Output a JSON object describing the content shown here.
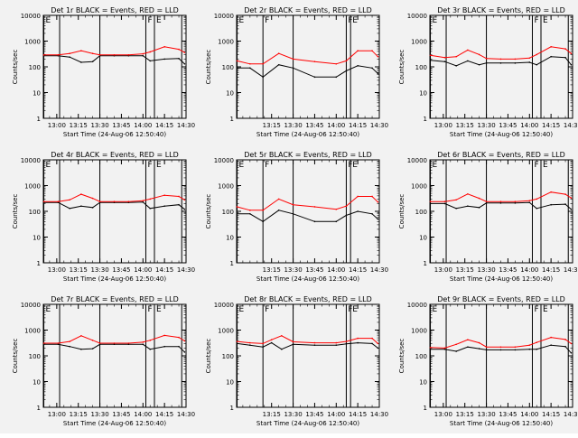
{
  "colors": {
    "background": "#f2f2f2",
    "events": "#000000",
    "lld": "#ff0000",
    "axis": "#000000"
  },
  "shared": {
    "ylabel": "Counts/sec",
    "xlabel": "Start Time (24-Aug-06 12:50:40)",
    "yscale": "log",
    "ylim": [
      1,
      10000
    ],
    "yticks": [
      "1",
      "10",
      "100",
      "1000",
      "10000"
    ],
    "xrange_hours": [
      12.8444,
      14.5
    ]
  },
  "chart_data": [
    {
      "type": "line",
      "title": "Det 1r BLACK = Events, RED = LLD",
      "ylabel": "Counts/sec",
      "xlabel": "Start Time (24-Aug-06 12:50:40)",
      "xticks": [
        "13:00",
        "13:15",
        "13:30",
        "13:45",
        "14:00",
        "14:15",
        "14:30"
      ],
      "markers": [
        {
          "x": "12:51",
          "label": "E"
        },
        {
          "x": "13:02",
          "label": ""
        },
        {
          "x": "13:30",
          "label": ""
        },
        {
          "x": "14:02",
          "label": "F"
        },
        {
          "x": "14:08",
          "label": "E"
        },
        {
          "x": "14:27",
          "label": ""
        }
      ],
      "series": [
        {
          "name": "Events",
          "color": "#000000",
          "x": [
            "12:51",
            "13:01",
            "13:09",
            "13:17",
            "13:25",
            "13:30",
            "13:40",
            "13:50",
            "14:00",
            "14:05",
            "14:15",
            "14:25",
            "14:29"
          ],
          "values": [
            270,
            270,
            240,
            150,
            160,
            270,
            270,
            270,
            270,
            170,
            200,
            210,
            130
          ]
        },
        {
          "name": "LLD",
          "color": "#ff0000",
          "x": [
            "12:51",
            "13:01",
            "13:09",
            "13:17",
            "13:25",
            "13:30",
            "13:40",
            "13:50",
            "14:00",
            "14:05",
            "14:15",
            "14:25",
            "14:29"
          ],
          "values": [
            290,
            290,
            330,
            420,
            330,
            290,
            290,
            290,
            320,
            380,
            600,
            480,
            360
          ]
        }
      ]
    },
    {
      "type": "line",
      "title": "Det 2r BLACK = Events, RED = LLD",
      "ylabel": "Counts/sec",
      "xlabel": "Start Time (24-Aug-06 12:50:40)",
      "xticks": [
        "13:15",
        "13:30",
        "13:45",
        "14:00",
        "14:15",
        "14:30"
      ],
      "markers": [
        {
          "x": "12:51",
          "label": "E"
        },
        {
          "x": "13:09",
          "label": "F"
        },
        {
          "x": "13:30",
          "label": ""
        },
        {
          "x": "14:07",
          "label": "F"
        },
        {
          "x": "14:10",
          "label": "E"
        }
      ],
      "series": [
        {
          "name": "Events",
          "color": "#000000",
          "x": [
            "12:51",
            "13:00",
            "13:09",
            "13:20",
            "13:30",
            "13:45",
            "14:00",
            "14:07",
            "14:15",
            "14:25",
            "14:29"
          ],
          "values": [
            90,
            90,
            40,
            120,
            90,
            40,
            40,
            70,
            110,
            90,
            55
          ]
        },
        {
          "name": "LLD",
          "color": "#ff0000",
          "x": [
            "12:51",
            "13:00",
            "13:09",
            "13:20",
            "13:30",
            "13:45",
            "14:00",
            "14:07",
            "14:15",
            "14:25",
            "14:29"
          ],
          "values": [
            170,
            130,
            130,
            330,
            200,
            160,
            130,
            170,
            420,
            420,
            250
          ]
        }
      ]
    },
    {
      "type": "line",
      "title": "Det 3r BLACK = Events, RED = LLD",
      "ylabel": "Counts/sec",
      "xlabel": "Start Time (24-Aug-06 12:50:40)",
      "xticks": [
        "13:00",
        "13:15",
        "13:30",
        "13:45",
        "14:00",
        "14:15",
        "14:30"
      ],
      "markers": [
        {
          "x": "12:51",
          "label": "E"
        },
        {
          "x": "13:02",
          "label": ""
        },
        {
          "x": "13:30",
          "label": ""
        },
        {
          "x": "14:02",
          "label": "F"
        },
        {
          "x": "14:08",
          "label": "E"
        },
        {
          "x": "14:27",
          "label": ""
        }
      ],
      "series": [
        {
          "name": "Events",
          "color": "#000000",
          "x": [
            "12:51",
            "13:01",
            "13:09",
            "13:17",
            "13:25",
            "13:30",
            "13:40",
            "13:50",
            "14:00",
            "14:05",
            "14:15",
            "14:25",
            "14:29"
          ],
          "values": [
            180,
            160,
            110,
            170,
            120,
            140,
            140,
            140,
            150,
            120,
            250,
            230,
            120
          ]
        },
        {
          "name": "LLD",
          "color": "#ff0000",
          "x": [
            "12:51",
            "13:01",
            "13:09",
            "13:17",
            "13:25",
            "13:30",
            "13:40",
            "13:50",
            "14:00",
            "14:05",
            "14:15",
            "14:25",
            "14:29"
          ],
          "values": [
            280,
            230,
            250,
            450,
            300,
            210,
            200,
            200,
            220,
            300,
            600,
            500,
            330
          ]
        }
      ]
    },
    {
      "type": "line",
      "title": "Det 4r BLACK = Events, RED = LLD",
      "ylabel": "Counts/sec",
      "xlabel": "Start Time (24-Aug-06 12:50:40)",
      "xticks": [
        "13:00",
        "13:15",
        "13:30",
        "13:45",
        "14:00",
        "14:15",
        "14:30"
      ],
      "markers": [
        {
          "x": "12:51",
          "label": "E"
        },
        {
          "x": "13:02",
          "label": ""
        },
        {
          "x": "13:30",
          "label": ""
        },
        {
          "x": "14:02",
          "label": "F"
        },
        {
          "x": "14:08",
          "label": "E"
        },
        {
          "x": "14:27",
          "label": ""
        }
      ],
      "series": [
        {
          "name": "Events",
          "color": "#000000",
          "x": [
            "12:51",
            "13:01",
            "13:09",
            "13:17",
            "13:25",
            "13:30",
            "13:40",
            "13:50",
            "14:00",
            "14:05",
            "14:15",
            "14:25",
            "14:29"
          ],
          "values": [
            220,
            220,
            130,
            160,
            140,
            220,
            220,
            220,
            230,
            130,
            160,
            180,
            120
          ]
        },
        {
          "name": "LLD",
          "color": "#ff0000",
          "x": [
            "12:51",
            "13:01",
            "13:09",
            "13:17",
            "13:25",
            "13:30",
            "13:40",
            "13:50",
            "14:00",
            "14:05",
            "14:15",
            "14:25",
            "14:29"
          ],
          "values": [
            240,
            240,
            280,
            460,
            320,
            240,
            240,
            240,
            260,
            300,
            420,
            380,
            280
          ]
        }
      ]
    },
    {
      "type": "line",
      "title": "Det 5r BLACK = Events, RED = LLD",
      "ylabel": "Counts/sec",
      "xlabel": "Start Time (24-Aug-06 12:50:40)",
      "xticks": [
        "13:15",
        "13:30",
        "13:45",
        "14:00",
        "14:15",
        "14:30"
      ],
      "markers": [
        {
          "x": "12:51",
          "label": "E"
        },
        {
          "x": "13:09",
          "label": "F"
        },
        {
          "x": "13:30",
          "label": ""
        },
        {
          "x": "14:07",
          "label": "F"
        },
        {
          "x": "14:10",
          "label": "E"
        }
      ],
      "series": [
        {
          "name": "Events",
          "color": "#000000",
          "x": [
            "12:51",
            "13:00",
            "13:09",
            "13:20",
            "13:30",
            "13:45",
            "14:00",
            "14:07",
            "14:15",
            "14:25",
            "14:29"
          ],
          "values": [
            80,
            80,
            40,
            110,
            80,
            40,
            40,
            70,
            100,
            80,
            50
          ]
        },
        {
          "name": "LLD",
          "color": "#ff0000",
          "x": [
            "12:51",
            "13:00",
            "13:09",
            "13:20",
            "13:30",
            "13:45",
            "14:00",
            "14:07",
            "14:15",
            "14:25",
            "14:29"
          ],
          "values": [
            150,
            110,
            110,
            300,
            180,
            150,
            120,
            160,
            380,
            380,
            230
          ]
        }
      ]
    },
    {
      "type": "line",
      "title": "Det 6r BLACK = Events, RED = LLD",
      "ylabel": "Counts/sec",
      "xlabel": "Start Time (24-Aug-06 12:50:40)",
      "xticks": [
        "13:00",
        "13:15",
        "13:30",
        "13:45",
        "14:00",
        "14:15",
        "14:30"
      ],
      "markers": [
        {
          "x": "12:51",
          "label": "E"
        },
        {
          "x": "13:02",
          "label": ""
        },
        {
          "x": "13:30",
          "label": ""
        },
        {
          "x": "14:02",
          "label": "F"
        },
        {
          "x": "14:08",
          "label": "E"
        },
        {
          "x": "14:27",
          "label": ""
        }
      ],
      "series": [
        {
          "name": "Events",
          "color": "#000000",
          "x": [
            "12:51",
            "13:01",
            "13:09",
            "13:17",
            "13:25",
            "13:30",
            "13:40",
            "13:50",
            "14:00",
            "14:05",
            "14:15",
            "14:25",
            "14:29"
          ],
          "values": [
            200,
            200,
            130,
            160,
            140,
            210,
            210,
            210,
            220,
            130,
            180,
            190,
            120
          ]
        },
        {
          "name": "LLD",
          "color": "#ff0000",
          "x": [
            "12:51",
            "13:01",
            "13:09",
            "13:17",
            "13:25",
            "13:30",
            "13:40",
            "13:50",
            "14:00",
            "14:05",
            "14:15",
            "14:25",
            "14:29"
          ],
          "values": [
            240,
            240,
            280,
            470,
            320,
            240,
            240,
            240,
            260,
            300,
            560,
            460,
            330
          ]
        }
      ]
    },
    {
      "type": "line",
      "title": "Det 7r BLACK = Events, RED = LLD",
      "ylabel": "Counts/sec",
      "xlabel": "Start Time (24-Aug-06 12:50:40)",
      "xticks": [
        "13:00",
        "13:15",
        "13:30",
        "13:45",
        "14:00",
        "14:15",
        "14:30"
      ],
      "markers": [
        {
          "x": "12:51",
          "label": "E"
        },
        {
          "x": "13:02",
          "label": ""
        },
        {
          "x": "13:30",
          "label": ""
        },
        {
          "x": "14:02",
          "label": "F"
        },
        {
          "x": "14:08",
          "label": "E"
        },
        {
          "x": "14:27",
          "label": ""
        }
      ],
      "series": [
        {
          "name": "Events",
          "color": "#000000",
          "x": [
            "12:51",
            "13:01",
            "13:09",
            "13:17",
            "13:25",
            "13:30",
            "13:40",
            "13:50",
            "14:00",
            "14:05",
            "14:15",
            "14:25",
            "14:29"
          ],
          "values": [
            280,
            280,
            230,
            180,
            190,
            280,
            280,
            280,
            280,
            180,
            230,
            230,
            140
          ]
        },
        {
          "name": "LLD",
          "color": "#ff0000",
          "x": [
            "12:51",
            "13:01",
            "13:09",
            "13:17",
            "13:25",
            "13:30",
            "13:40",
            "13:50",
            "14:00",
            "14:05",
            "14:15",
            "14:25",
            "14:29"
          ],
          "values": [
            310,
            310,
            360,
            600,
            400,
            310,
            310,
            310,
            340,
            400,
            620,
            520,
            380
          ]
        }
      ]
    },
    {
      "type": "line",
      "title": "Det 8r BLACK = Events, RED = LLD",
      "ylabel": "Counts/sec",
      "xlabel": "Start Time (24-Aug-06 12:50:40)",
      "xticks": [
        "13:15",
        "13:30",
        "13:45",
        "14:00",
        "14:15",
        "14:30"
      ],
      "markers": [
        {
          "x": "12:51",
          "label": "E"
        },
        {
          "x": "13:09",
          "label": "F"
        },
        {
          "x": "13:30",
          "label": ""
        },
        {
          "x": "14:07",
          "label": "F"
        },
        {
          "x": "14:10",
          "label": "E"
        }
      ],
      "series": [
        {
          "name": "Events",
          "color": "#000000",
          "x": [
            "12:51",
            "13:00",
            "13:09",
            "13:15",
            "13:22",
            "13:30",
            "13:45",
            "14:00",
            "14:07",
            "14:15",
            "14:25",
            "14:29"
          ],
          "values": [
            300,
            260,
            220,
            320,
            180,
            280,
            260,
            260,
            290,
            320,
            300,
            200
          ]
        },
        {
          "name": "LLD",
          "color": "#ff0000",
          "x": [
            "12:51",
            "13:00",
            "13:09",
            "13:15",
            "13:22",
            "13:30",
            "13:45",
            "14:00",
            "14:07",
            "14:15",
            "14:25",
            "14:29"
          ],
          "values": [
            360,
            320,
            300,
            420,
            600,
            350,
            320,
            320,
            360,
            480,
            480,
            300
          ]
        }
      ]
    },
    {
      "type": "line",
      "title": "Det 9r BLACK = Events, RED = LLD",
      "ylabel": "Counts/sec",
      "xlabel": "Start Time (24-Aug-06 12:50:40)",
      "xticks": [
        "13:00",
        "13:15",
        "13:30",
        "13:45",
        "14:00",
        "14:15",
        "14:30"
      ],
      "markers": [
        {
          "x": "12:51",
          "label": "E"
        },
        {
          "x": "13:02",
          "label": ""
        },
        {
          "x": "13:30",
          "label": ""
        },
        {
          "x": "14:02",
          "label": "F"
        },
        {
          "x": "14:08",
          "label": "E"
        },
        {
          "x": "14:27",
          "label": ""
        }
      ],
      "series": [
        {
          "name": "Events",
          "color": "#000000",
          "x": [
            "12:51",
            "13:01",
            "13:09",
            "13:17",
            "13:25",
            "13:30",
            "13:40",
            "13:50",
            "14:00",
            "14:05",
            "14:15",
            "14:25",
            "14:29"
          ],
          "values": [
            180,
            180,
            150,
            220,
            190,
            170,
            170,
            170,
            180,
            180,
            260,
            230,
            130
          ]
        },
        {
          "name": "LLD",
          "color": "#ff0000",
          "x": [
            "12:51",
            "13:01",
            "13:09",
            "13:17",
            "13:25",
            "13:30",
            "13:40",
            "13:50",
            "14:00",
            "14:05",
            "14:15",
            "14:25",
            "14:29"
          ],
          "values": [
            210,
            200,
            280,
            420,
            320,
            220,
            220,
            220,
            260,
            330,
            520,
            430,
            300
          ]
        }
      ]
    }
  ]
}
